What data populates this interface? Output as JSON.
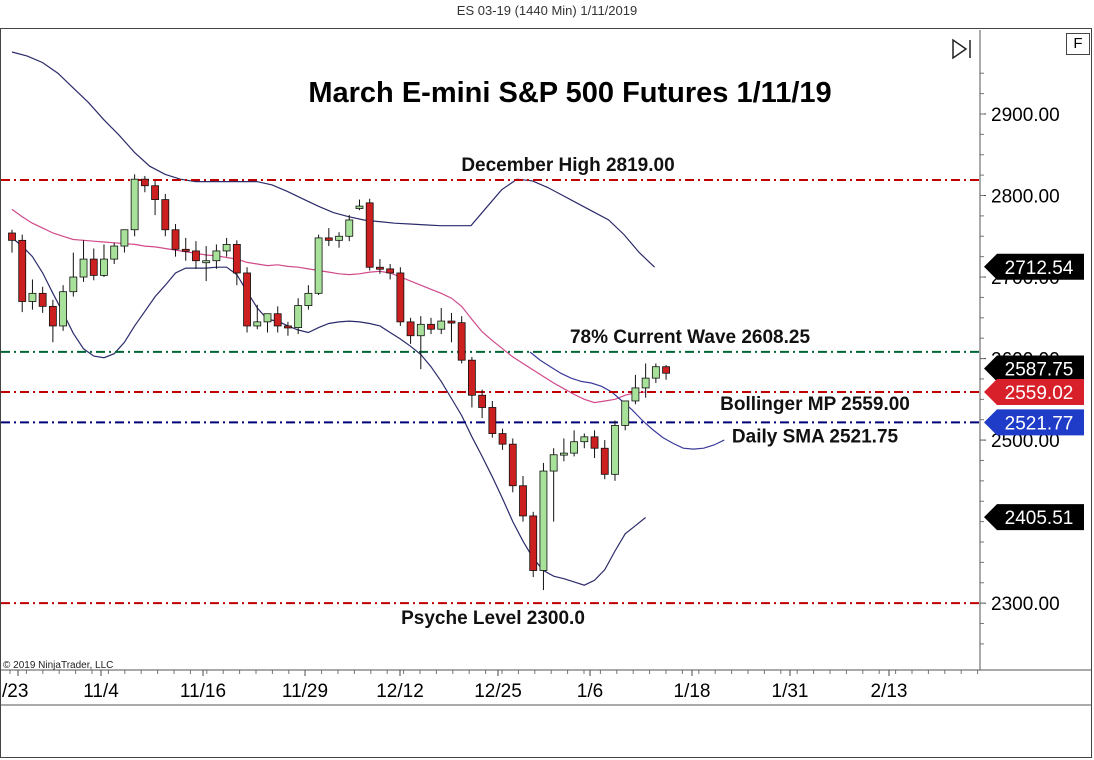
{
  "window": {
    "title": "ES 03-19 (1440 Min)  1/11/2019",
    "f_button": "F"
  },
  "copyright": "© 2019 NinjaTrader, LLC",
  "chart_data": {
    "type": "candlestick",
    "title": "March E-mini S&P 500 Futures 1/11/19",
    "y_ticks": [
      "2900.00",
      "2800.00",
      "2700.00",
      "2600.00",
      "2500.00",
      "2300.00"
    ],
    "x_ticks": [
      "/23",
      "11/4",
      "11/16",
      "11/29",
      "12/12",
      "12/25",
      "1/6",
      "1/18",
      "1/31",
      "2/13"
    ],
    "ylim": [
      2218,
      3003
    ],
    "horizontal_lines": [
      {
        "label": "December High 2819.00",
        "value": 2819.0,
        "color": "#c00000"
      },
      {
        "label": "78% Current Wave 2608.25",
        "value": 2608.25,
        "color": "#006633"
      },
      {
        "label": "Bollinger MP 2559.00",
        "value": 2559.0,
        "color": "#c00000"
      },
      {
        "label": "Daily SMA 2521.75",
        "value": 2521.75,
        "color": "#00007a"
      },
      {
        "label": "Psyche Level 2300.0",
        "value": 2300.0,
        "color": "#c00000"
      }
    ],
    "price_tags": [
      {
        "text": "2712.54",
        "value": 2712.54,
        "bg": "#000000",
        "fg": "#ffffff"
      },
      {
        "text": "2587.75",
        "value": 2587.75,
        "bg": "#000000",
        "fg": "#ffffff"
      },
      {
        "text": "2559.02",
        "value": 2559.02,
        "bg": "#d8202a",
        "fg": "#ffffff"
      },
      {
        "text": "2521.77",
        "value": 2521.77,
        "bg": "#1e3cc8",
        "fg": "#ffffff"
      },
      {
        "text": "2405.51",
        "value": 2405.51,
        "bg": "#000000",
        "fg": "#ffffff"
      }
    ],
    "candles": [
      {
        "o": 2754,
        "h": 2758,
        "c": 2745,
        "l": 2730
      },
      {
        "o": 2745,
        "h": 2752,
        "c": 2670,
        "l": 2657
      },
      {
        "o": 2670,
        "h": 2697,
        "c": 2680,
        "l": 2660
      },
      {
        "o": 2680,
        "h": 2688,
        "c": 2664,
        "l": 2656
      },
      {
        "o": 2664,
        "h": 2672,
        "c": 2640,
        "l": 2620
      },
      {
        "o": 2640,
        "h": 2690,
        "c": 2682,
        "l": 2634
      },
      {
        "o": 2682,
        "h": 2730,
        "c": 2700,
        "l": 2676
      },
      {
        "o": 2700,
        "h": 2745,
        "c": 2722,
        "l": 2694
      },
      {
        "o": 2722,
        "h": 2735,
        "c": 2702,
        "l": 2696
      },
      {
        "o": 2702,
        "h": 2740,
        "c": 2722,
        "l": 2700
      },
      {
        "o": 2722,
        "h": 2742,
        "c": 2738,
        "l": 2716
      },
      {
        "o": 2738,
        "h": 2752,
        "c": 2758,
        "l": 2730
      },
      {
        "o": 2758,
        "h": 2826,
        "c": 2820,
        "l": 2750
      },
      {
        "o": 2820,
        "h": 2824,
        "c": 2812,
        "l": 2804
      },
      {
        "o": 2812,
        "h": 2818,
        "c": 2795,
        "l": 2776
      },
      {
        "o": 2795,
        "h": 2802,
        "c": 2758,
        "l": 2750
      },
      {
        "o": 2758,
        "h": 2765,
        "c": 2734,
        "l": 2725
      },
      {
        "o": 2734,
        "h": 2748,
        "c": 2732,
        "l": 2720
      },
      {
        "o": 2732,
        "h": 2744,
        "c": 2720,
        "l": 2710
      },
      {
        "o": 2720,
        "h": 2738,
        "c": 2720,
        "l": 2695
      },
      {
        "o": 2720,
        "h": 2740,
        "c": 2732,
        "l": 2710
      },
      {
        "o": 2732,
        "h": 2748,
        "c": 2740,
        "l": 2725
      },
      {
        "o": 2740,
        "h": 2745,
        "c": 2705,
        "l": 2690
      },
      {
        "o": 2705,
        "h": 2712,
        "c": 2640,
        "l": 2632
      },
      {
        "o": 2640,
        "h": 2666,
        "c": 2645,
        "l": 2636
      },
      {
        "o": 2645,
        "h": 2654,
        "c": 2655,
        "l": 2632
      },
      {
        "o": 2655,
        "h": 2664,
        "c": 2640,
        "l": 2632
      },
      {
        "o": 2640,
        "h": 2645,
        "c": 2638,
        "l": 2628
      },
      {
        "o": 2638,
        "h": 2674,
        "c": 2665,
        "l": 2630
      },
      {
        "o": 2665,
        "h": 2690,
        "c": 2680,
        "l": 2660
      },
      {
        "o": 2680,
        "h": 2752,
        "c": 2748,
        "l": 2678
      },
      {
        "o": 2748,
        "h": 2760,
        "c": 2745,
        "l": 2738
      },
      {
        "o": 2745,
        "h": 2755,
        "c": 2750,
        "l": 2736
      },
      {
        "o": 2750,
        "h": 2776,
        "c": 2770,
        "l": 2744
      },
      {
        "o": 2784,
        "h": 2795,
        "c": 2787,
        "l": 2782
      },
      {
        "o": 2791,
        "h": 2796,
        "c": 2712,
        "l": 2708
      },
      {
        "o": 2712,
        "h": 2722,
        "c": 2710,
        "l": 2704
      },
      {
        "o": 2710,
        "h": 2716,
        "c": 2705,
        "l": 2697
      },
      {
        "o": 2705,
        "h": 2712,
        "c": 2645,
        "l": 2640
      },
      {
        "o": 2645,
        "h": 2650,
        "c": 2628,
        "l": 2618
      },
      {
        "o": 2628,
        "h": 2652,
        "c": 2642,
        "l": 2587
      },
      {
        "o": 2642,
        "h": 2650,
        "c": 2636,
        "l": 2630
      },
      {
        "o": 2636,
        "h": 2662,
        "c": 2646,
        "l": 2630
      },
      {
        "o": 2646,
        "h": 2656,
        "c": 2644,
        "l": 2620
      },
      {
        "o": 2644,
        "h": 2652,
        "c": 2598,
        "l": 2594
      },
      {
        "o": 2598,
        "h": 2602,
        "c": 2555,
        "l": 2540
      },
      {
        "o": 2555,
        "h": 2562,
        "c": 2540,
        "l": 2527
      },
      {
        "o": 2540,
        "h": 2548,
        "c": 2508,
        "l": 2503
      },
      {
        "o": 2508,
        "h": 2514,
        "c": 2495,
        "l": 2488
      },
      {
        "o": 2495,
        "h": 2502,
        "c": 2444,
        "l": 2436
      },
      {
        "o": 2444,
        "h": 2456,
        "c": 2407,
        "l": 2400
      },
      {
        "o": 2407,
        "h": 2412,
        "c": 2340,
        "l": 2332
      },
      {
        "o": 2340,
        "h": 2472,
        "c": 2462,
        "l": 2316
      },
      {
        "o": 2462,
        "h": 2490,
        "c": 2482,
        "l": 2400
      },
      {
        "o": 2482,
        "h": 2502,
        "c": 2484,
        "l": 2474
      },
      {
        "o": 2484,
        "h": 2512,
        "c": 2498,
        "l": 2480
      },
      {
        "o": 2498,
        "h": 2508,
        "c": 2504,
        "l": 2490
      },
      {
        "o": 2504,
        "h": 2512,
        "c": 2490,
        "l": 2478
      },
      {
        "o": 2490,
        "h": 2500,
        "c": 2458,
        "l": 2452
      },
      {
        "o": 2458,
        "h": 2524,
        "c": 2518,
        "l": 2450
      },
      {
        "o": 2518,
        "h": 2548,
        "c": 2548,
        "l": 2512
      },
      {
        "o": 2548,
        "h": 2580,
        "c": 2564,
        "l": 2544
      },
      {
        "o": 2564,
        "h": 2594,
        "c": 2576,
        "l": 2552
      },
      {
        "o": 2576,
        "h": 2594,
        "c": 2590,
        "l": 2570
      },
      {
        "o": 2590,
        "h": 2592,
        "c": 2582,
        "l": 2574
      }
    ],
    "bollinger_upper": [
      2976,
      2971,
      2963,
      2950,
      2932,
      2914,
      2893,
      2874,
      2853,
      2836,
      2826,
      2820,
      2817,
      2817,
      2817,
      2817,
      2817,
      2813,
      2805,
      2796,
      2787,
      2779,
      2774,
      2770,
      2768,
      2766,
      2765,
      2764,
      2763,
      2763,
      2763,
      2785,
      2807,
      2820,
      2818,
      2810,
      2800,
      2790,
      2780,
      2770,
      2752,
      2730,
      2712
    ],
    "bollinger_mid": [
      2783,
      2774,
      2766,
      2760,
      2754,
      2750,
      2746,
      2745,
      2744,
      2743,
      2742,
      2741,
      2740,
      2738,
      2737,
      2735,
      2733,
      2731,
      2729,
      2727,
      2726,
      2724,
      2722,
      2718,
      2716,
      2714,
      2715,
      2713,
      2712,
      2710,
      2708,
      2706,
      2704,
      2703,
      2704,
      2706,
      2707,
      2705,
      2700,
      2695,
      2690,
      2685,
      2680,
      2674,
      2664,
      2648,
      2633,
      2622,
      2612,
      2602,
      2594,
      2586,
      2578,
      2570,
      2563,
      2556,
      2550,
      2546,
      2548,
      2550,
      2555,
      2558,
      2559
    ],
    "bollinger_lower": [
      2748,
      2738,
      2725,
      2705,
      2680,
      2656,
      2631,
      2612,
      2603,
      2601,
      2606,
      2620,
      2640,
      2658,
      2676,
      2690,
      2705,
      2711,
      2711,
      2711,
      2712,
      2712,
      2703,
      2682,
      2662,
      2648,
      2646,
      2640,
      2635,
      2632,
      2638,
      2643,
      2645,
      2646,
      2645,
      2643,
      2640,
      2632,
      2624,
      2615,
      2605,
      2590,
      2572,
      2551,
      2530,
      2504,
      2480,
      2455,
      2428,
      2400,
      2376,
      2355,
      2340,
      2333,
      2330,
      2326,
      2322,
      2328,
      2341,
      2364,
      2385,
      2395,
      2405
    ],
    "daily_sma": [
      2608,
      2598,
      2590,
      2582,
      2576,
      2572,
      2570,
      2566,
      2559,
      2548,
      2537,
      2524,
      2513,
      2503,
      2496,
      2490,
      2489,
      2490,
      2494,
      2500
    ]
  }
}
